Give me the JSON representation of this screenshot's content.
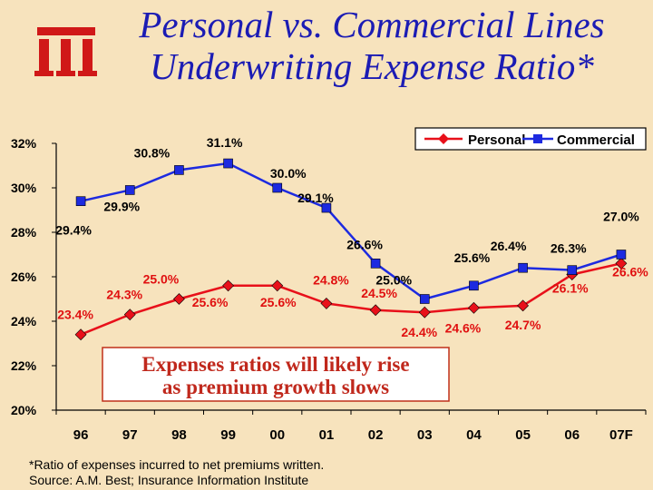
{
  "title_line1": "Personal vs. Commercial Lines",
  "title_line2": "Underwriting Expense Ratio*",
  "logo": "iii-logo",
  "callout": {
    "line1": "Expenses ratios will likely rise",
    "line2": "as premium growth slows"
  },
  "footnote": {
    "line1": "*Ratio of expenses incurred to net premiums written.",
    "line2": "Source: A.M. Best; Insurance Information Institute"
  },
  "colors": {
    "personal": "#e8101a",
    "commercial": "#1d2ae0",
    "title": "#1c1cb4",
    "personal_label": "#e01010",
    "background": "#f7e3bd"
  },
  "chart_data": {
    "type": "line",
    "categories": [
      "96",
      "97",
      "98",
      "99",
      "00",
      "01",
      "02",
      "03",
      "04",
      "05",
      "06",
      "07F"
    ],
    "series": [
      {
        "name": "Personal",
        "values": [
          23.4,
          24.3,
          25.0,
          25.6,
          25.6,
          24.8,
          24.5,
          24.4,
          24.6,
          24.7,
          26.1,
          26.6
        ],
        "labels": [
          "23.4%",
          "24.3%",
          "25.0%",
          "25.6%",
          "25.6%",
          "24.8%",
          "24.5%",
          "24.4%",
          "24.6%",
          "24.7%",
          "26.1%",
          "26.6%"
        ]
      },
      {
        "name": "Commercial",
        "values": [
          29.4,
          29.9,
          30.8,
          31.1,
          30.0,
          29.1,
          26.6,
          25.0,
          25.6,
          26.4,
          26.3,
          27.0
        ],
        "labels": [
          "29.4%",
          "29.9%",
          "30.8%",
          "31.1%",
          "30.0%",
          "29.1%",
          "26.6%",
          "25.0%",
          "25.6%",
          "26.4%",
          "26.3%",
          "27.0%"
        ]
      }
    ],
    "y_ticks": [
      20,
      22,
      24,
      26,
      28,
      30,
      32
    ],
    "y_tick_labels": [
      "20%",
      "22%",
      "24%",
      "26%",
      "28%",
      "30%",
      "32%"
    ],
    "ylim": [
      20,
      32
    ],
    "grid": false,
    "legend": "top-right"
  }
}
